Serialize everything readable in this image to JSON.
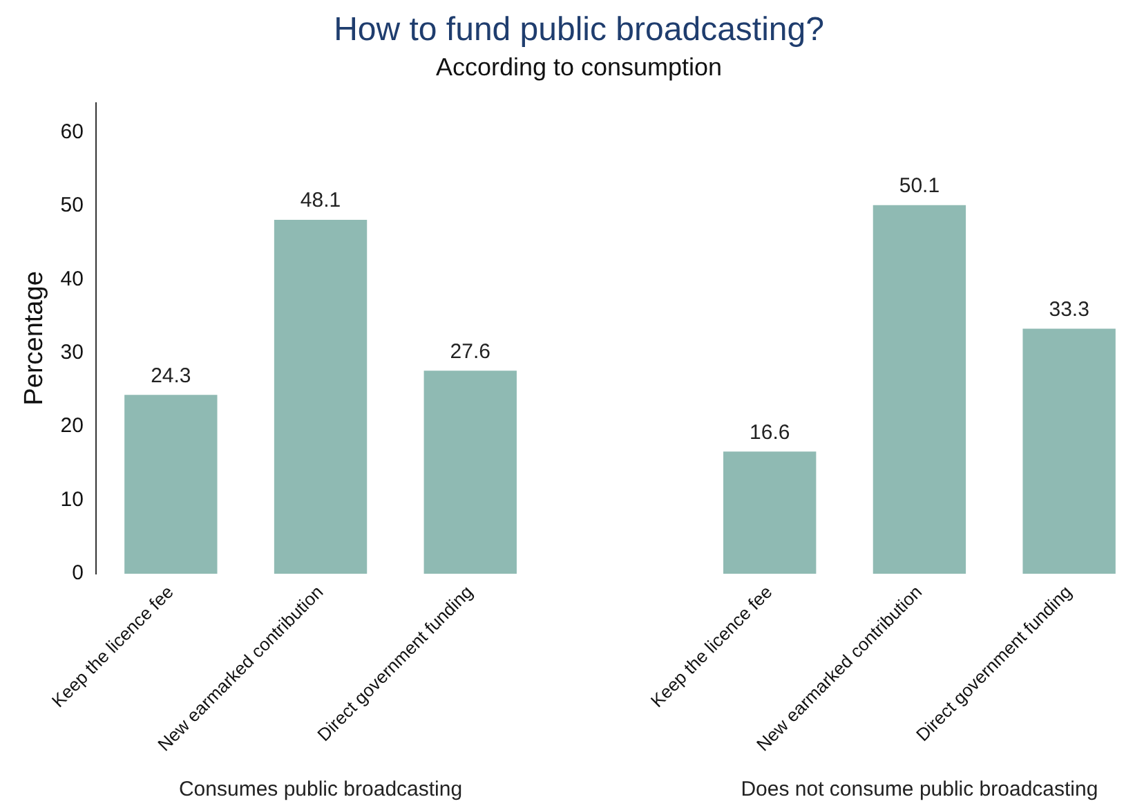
{
  "chart_data": {
    "type": "bar",
    "title": "How to fund public broadcasting?",
    "subtitle": "According to consumption",
    "ylabel": "Percentage",
    "categories": [
      "Keep the licence fee",
      "New earmarked contribution",
      "Direct government funding",
      null,
      "Keep the licence fee",
      "New earmarked contribution",
      "Direct government funding"
    ],
    "values": [
      24.3,
      48.1,
      27.6,
      null,
      16.6,
      50.1,
      33.3
    ],
    "color": "#8fbab3",
    "ylim": [
      0,
      64
    ],
    "yticks": [
      0,
      10,
      20,
      30,
      40,
      50,
      60
    ],
    "grid": false,
    "legend": false,
    "data_labels": true,
    "annotations": [
      "Consumes public broadcasting",
      "Does not consume public broadcasting"
    ]
  }
}
